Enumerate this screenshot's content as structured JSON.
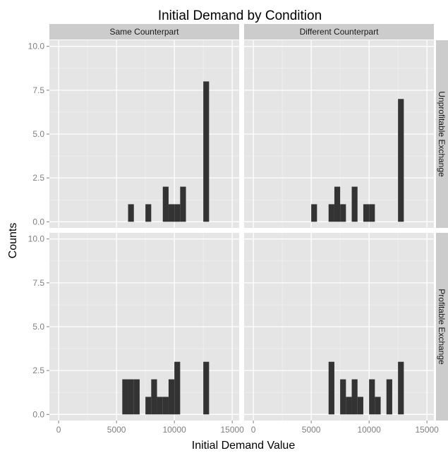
{
  "chart_data": {
    "type": "bar",
    "title": "Initial Demand by Condition",
    "xlabel": "Initial Demand Value",
    "ylabel": "Counts",
    "xlim": [
      -800,
      15600
    ],
    "ylim": [
      -0.35,
      10.35
    ],
    "x_ticks": [
      0,
      5000,
      10000,
      15000
    ],
    "x_tick_labels": [
      "0",
      "5000",
      "10000",
      "15000"
    ],
    "y_ticks": [
      0,
      2.5,
      5,
      7.5,
      10
    ],
    "y_tick_labels": [
      "0.0",
      "2.5",
      "5.0",
      "7.5",
      "10.0"
    ],
    "bin_width": 500,
    "grid": true,
    "bar_color": "#333333",
    "panel_color": "#e5e5e5",
    "strip_color": "#cccccc",
    "col_labels": [
      "Same Counterpart",
      "Different Counterpart"
    ],
    "row_labels": [
      "Unprofitable Exchange",
      "Profitable Exchange"
    ],
    "panels": [
      {
        "col": "Same Counterpart",
        "row": "Unprofitable Exchange",
        "bins": [
          {
            "x0": 6000,
            "x1": 6500,
            "count": 1
          },
          {
            "x0": 7500,
            "x1": 8000,
            "count": 1
          },
          {
            "x0": 9000,
            "x1": 9500,
            "count": 2
          },
          {
            "x0": 9500,
            "x1": 10000,
            "count": 1
          },
          {
            "x0": 10000,
            "x1": 10500,
            "count": 1
          },
          {
            "x0": 10500,
            "x1": 11000,
            "count": 2
          },
          {
            "x0": 12500,
            "x1": 13000,
            "count": 8
          }
        ]
      },
      {
        "col": "Different Counterpart",
        "row": "Unprofitable Exchange",
        "bins": [
          {
            "x0": 5000,
            "x1": 5500,
            "count": 1
          },
          {
            "x0": 6500,
            "x1": 7000,
            "count": 1
          },
          {
            "x0": 7000,
            "x1": 7500,
            "count": 2
          },
          {
            "x0": 7500,
            "x1": 8000,
            "count": 1
          },
          {
            "x0": 8500,
            "x1": 9000,
            "count": 2
          },
          {
            "x0": 9500,
            "x1": 10000,
            "count": 1
          },
          {
            "x0": 10000,
            "x1": 10500,
            "count": 1
          },
          {
            "x0": 12500,
            "x1": 13000,
            "count": 7
          }
        ]
      },
      {
        "col": "Same Counterpart",
        "row": "Profitable Exchange",
        "bins": [
          {
            "x0": 5500,
            "x1": 6000,
            "count": 2
          },
          {
            "x0": 6000,
            "x1": 6500,
            "count": 2
          },
          {
            "x0": 6500,
            "x1": 7000,
            "count": 2
          },
          {
            "x0": 7500,
            "x1": 8000,
            "count": 1
          },
          {
            "x0": 8000,
            "x1": 8500,
            "count": 2
          },
          {
            "x0": 8500,
            "x1": 9000,
            "count": 1
          },
          {
            "x0": 9000,
            "x1": 9500,
            "count": 1
          },
          {
            "x0": 9500,
            "x1": 10000,
            "count": 2
          },
          {
            "x0": 10000,
            "x1": 10500,
            "count": 3
          },
          {
            "x0": 12500,
            "x1": 13000,
            "count": 3
          }
        ]
      },
      {
        "col": "Different Counterpart",
        "row": "Profitable Exchange",
        "bins": [
          {
            "x0": 6500,
            "x1": 7000,
            "count": 3
          },
          {
            "x0": 7500,
            "x1": 8000,
            "count": 2
          },
          {
            "x0": 8000,
            "x1": 8500,
            "count": 1
          },
          {
            "x0": 8500,
            "x1": 9000,
            "count": 2
          },
          {
            "x0": 9000,
            "x1": 9500,
            "count": 1
          },
          {
            "x0": 10000,
            "x1": 10500,
            "count": 2
          },
          {
            "x0": 10500,
            "x1": 11000,
            "count": 1
          },
          {
            "x0": 11500,
            "x1": 12000,
            "count": 2
          },
          {
            "x0": 12500,
            "x1": 13000,
            "count": 3
          }
        ]
      }
    ]
  }
}
